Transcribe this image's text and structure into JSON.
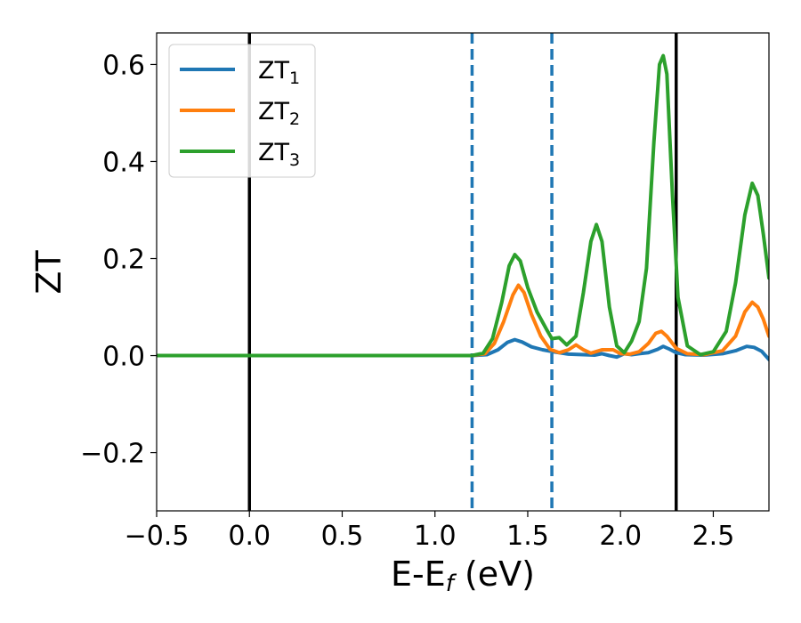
{
  "chart_data": {
    "type": "line",
    "xlabel": {
      "main": "E-E",
      "sub": "f",
      "unit": " (eV)"
    },
    "ylabel": "ZT",
    "xlim": [
      -0.5,
      2.8
    ],
    "ylim": [
      -0.32,
      0.665
    ],
    "xticks": [
      -0.5,
      0.0,
      0.5,
      1.0,
      1.5,
      2.0,
      2.5
    ],
    "xtick_labels": [
      "−0.5",
      "0.0",
      "0.5",
      "1.0",
      "1.5",
      "2.0",
      "2.5"
    ],
    "yticks": [
      -0.2,
      0.0,
      0.2,
      0.4,
      0.6
    ],
    "ytick_labels": [
      "−0.2",
      "0.0",
      "0.2",
      "0.4",
      "0.6"
    ],
    "grid": false,
    "legend_placement": "top-left",
    "vlines": [
      {
        "x": 0.0,
        "style": "solid",
        "color": "#000000"
      },
      {
        "x": 2.3,
        "style": "solid",
        "color": "#000000"
      },
      {
        "x": 1.2,
        "style": "dashed",
        "color": "#1f77b4"
      },
      {
        "x": 1.63,
        "style": "dashed",
        "color": "#1f77b4"
      }
    ],
    "series": [
      {
        "name": "ZT",
        "sub": "1",
        "color": "#1f77b4",
        "points": [
          [
            -0.5,
            0
          ],
          [
            1.2,
            0
          ],
          [
            1.28,
            0.002
          ],
          [
            1.34,
            0.012
          ],
          [
            1.39,
            0.027
          ],
          [
            1.43,
            0.033
          ],
          [
            1.47,
            0.028
          ],
          [
            1.52,
            0.018
          ],
          [
            1.58,
            0.012
          ],
          [
            1.65,
            0.007
          ],
          [
            1.72,
            0.003
          ],
          [
            1.8,
            0.002
          ],
          [
            1.86,
            0.001
          ],
          [
            1.9,
            0.004
          ],
          [
            1.94,
            0
          ],
          [
            1.98,
            -0.003
          ],
          [
            2.02,
            0.004
          ],
          [
            2.06,
            0.002
          ],
          [
            2.1,
            0.004
          ],
          [
            2.15,
            0.006
          ],
          [
            2.2,
            0.013
          ],
          [
            2.23,
            0.019
          ],
          [
            2.26,
            0.014
          ],
          [
            2.3,
            0.006
          ],
          [
            2.35,
            0.002
          ],
          [
            2.45,
            0.001
          ],
          [
            2.55,
            0.004
          ],
          [
            2.62,
            0.01
          ],
          [
            2.68,
            0.019
          ],
          [
            2.72,
            0.017
          ],
          [
            2.76,
            0.009
          ],
          [
            2.8,
            -0.008
          ]
        ]
      },
      {
        "name": "ZT",
        "sub": "2",
        "color": "#ff7f0e",
        "points": [
          [
            -0.5,
            0
          ],
          [
            1.2,
            0
          ],
          [
            1.27,
            0.004
          ],
          [
            1.32,
            0.025
          ],
          [
            1.37,
            0.07
          ],
          [
            1.42,
            0.125
          ],
          [
            1.45,
            0.145
          ],
          [
            1.48,
            0.13
          ],
          [
            1.52,
            0.085
          ],
          [
            1.57,
            0.04
          ],
          [
            1.62,
            0.013
          ],
          [
            1.67,
            0.006
          ],
          [
            1.72,
            0.012
          ],
          [
            1.76,
            0.022
          ],
          [
            1.8,
            0.012
          ],
          [
            1.84,
            0.005
          ],
          [
            1.9,
            0.012
          ],
          [
            1.96,
            0.012
          ],
          [
            2.0,
            0.004
          ],
          [
            2.05,
            0.003
          ],
          [
            2.1,
            0.008
          ],
          [
            2.15,
            0.025
          ],
          [
            2.19,
            0.046
          ],
          [
            2.22,
            0.05
          ],
          [
            2.25,
            0.04
          ],
          [
            2.3,
            0.015
          ],
          [
            2.36,
            0.004
          ],
          [
            2.45,
            0.002
          ],
          [
            2.55,
            0.01
          ],
          [
            2.62,
            0.04
          ],
          [
            2.67,
            0.09
          ],
          [
            2.71,
            0.11
          ],
          [
            2.74,
            0.1
          ],
          [
            2.77,
            0.075
          ],
          [
            2.8,
            0.04
          ]
        ]
      },
      {
        "name": "ZT",
        "sub": "3",
        "color": "#2ca02c",
        "points": [
          [
            -0.5,
            0
          ],
          [
            1.2,
            0
          ],
          [
            1.26,
            0.005
          ],
          [
            1.31,
            0.035
          ],
          [
            1.36,
            0.11
          ],
          [
            1.4,
            0.185
          ],
          [
            1.43,
            0.208
          ],
          [
            1.46,
            0.195
          ],
          [
            1.5,
            0.14
          ],
          [
            1.55,
            0.09
          ],
          [
            1.6,
            0.055
          ],
          [
            1.63,
            0.035
          ],
          [
            1.67,
            0.037
          ],
          [
            1.71,
            0.022
          ],
          [
            1.76,
            0.04
          ],
          [
            1.8,
            0.13
          ],
          [
            1.84,
            0.235
          ],
          [
            1.87,
            0.27
          ],
          [
            1.9,
            0.235
          ],
          [
            1.94,
            0.1
          ],
          [
            1.98,
            0.02
          ],
          [
            2.02,
            0.006
          ],
          [
            2.06,
            0.03
          ],
          [
            2.1,
            0.07
          ],
          [
            2.14,
            0.18
          ],
          [
            2.18,
            0.44
          ],
          [
            2.21,
            0.6
          ],
          [
            2.23,
            0.618
          ],
          [
            2.25,
            0.58
          ],
          [
            2.28,
            0.33
          ],
          [
            2.31,
            0.12
          ],
          [
            2.36,
            0.02
          ],
          [
            2.43,
            0.002
          ],
          [
            2.5,
            0.008
          ],
          [
            2.57,
            0.05
          ],
          [
            2.62,
            0.15
          ],
          [
            2.67,
            0.29
          ],
          [
            2.71,
            0.355
          ],
          [
            2.74,
            0.33
          ],
          [
            2.77,
            0.25
          ],
          [
            2.8,
            0.16
          ]
        ]
      }
    ]
  }
}
